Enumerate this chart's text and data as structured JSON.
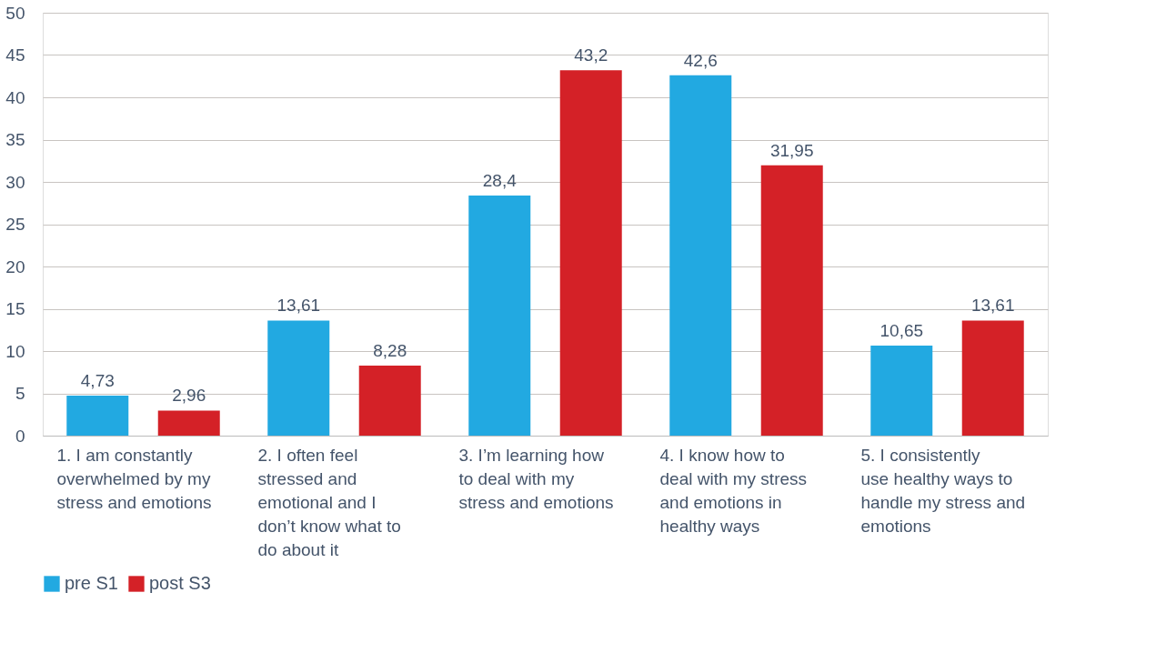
{
  "chart_data": {
    "type": "bar",
    "categories": [
      "1. I am constantly overwhelmed by my stress and emotions",
      "2. I often feel stressed and emotional and I don’t know what to do about it",
      "3. I’m learning how to deal with my stress and emotions",
      "4. I know how to deal with my stress and emotions in healthy ways",
      "5. I consistently use healthy ways to handle my stress and emotions"
    ],
    "series": [
      {
        "name": "pre S1",
        "color": "#22a9e1",
        "values": [
          4.73,
          13.61,
          28.4,
          42.6,
          10.65
        ],
        "value_labels": [
          "4,73",
          "13,61",
          "28,4",
          "42,6",
          "10,65"
        ]
      },
      {
        "name": "post S3",
        "color": "#d42127",
        "values": [
          2.96,
          8.28,
          43.2,
          31.95,
          13.61
        ],
        "value_labels": [
          "2,96",
          "8,28",
          "43,2",
          "31,95",
          "13,61"
        ]
      }
    ],
    "ylim": [
      0,
      50
    ],
    "yticks": [
      0,
      5,
      10,
      15,
      20,
      25,
      30,
      35,
      40,
      45,
      50
    ],
    "grid": "y",
    "legend": "bottom"
  }
}
